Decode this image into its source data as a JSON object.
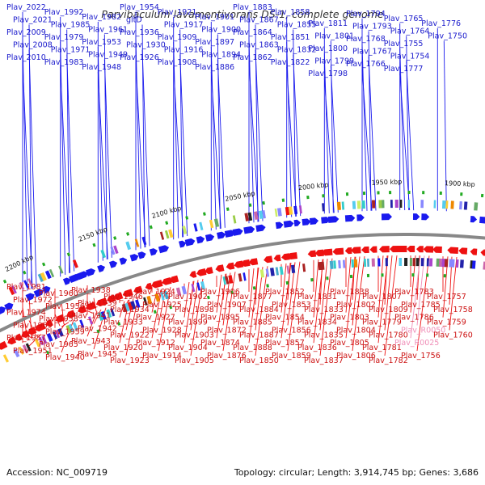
{
  "title": "Parvibaculum lavamentivorans DS-1, complete genome",
  "footer": {
    "accession": "Accession: NC_009719",
    "summary": "Topology: circular; Length: 3,914,745 bp; Genes: 3,686"
  },
  "colors": {
    "forward": "#1a1aee",
    "reverse": "#ee1111",
    "rna": "#f08fb8",
    "backbone": "#888888",
    "marker": "#22aa22"
  },
  "scale_ticks": [
    {
      "label": "2200 kbp"
    },
    {
      "label": "2150 kbp"
    },
    {
      "label": "2100 kbp"
    },
    {
      "label": "2050 kbp"
    },
    {
      "label": "2000 kbp"
    },
    {
      "label": "1950 kbp"
    },
    {
      "label": "1900 kbp"
    }
  ],
  "top_labels": [
    {
      "text": "Plav_2022"
    },
    {
      "text": "Plav_2021"
    },
    {
      "text": "Plav_2009"
    },
    {
      "text": "Plav_2008"
    },
    {
      "text": "Plav_2010"
    },
    {
      "text": "Plav_1992"
    },
    {
      "text": "Plav_1985"
    },
    {
      "text": "Plav_1979"
    },
    {
      "text": "Plav_1971"
    },
    {
      "text": "Plav_1983"
    },
    {
      "text": "Plav_1982"
    },
    {
      "text": "Plav_1961"
    },
    {
      "text": "Plav_1953"
    },
    {
      "text": "Plav_1949"
    },
    {
      "text": "Plav_1948"
    },
    {
      "text": "Plav_1954"
    },
    {
      "text": "gltD"
    },
    {
      "text": "Plav_1936"
    },
    {
      "text": "Plav_1930"
    },
    {
      "text": "Plav_1926"
    },
    {
      "text": "Plav_1921"
    },
    {
      "text": "Plav_1917"
    },
    {
      "text": "Plav_1909"
    },
    {
      "text": "Plav_1916"
    },
    {
      "text": "Plav_1908"
    },
    {
      "text": "Plav_1901"
    },
    {
      "text": "Plav_1900"
    },
    {
      "text": "Plav_1897"
    },
    {
      "text": "Plav_1894"
    },
    {
      "text": "Plav_1886"
    },
    {
      "text": "Plav_1883"
    },
    {
      "text": "Plav_1867"
    },
    {
      "text": "Plav_1864"
    },
    {
      "text": "Plav_1863"
    },
    {
      "text": "Plav_1862"
    },
    {
      "text": "Plav_1858"
    },
    {
      "text": "Plav_1855"
    },
    {
      "text": "Plav_1851"
    },
    {
      "text": "Plav_1832"
    },
    {
      "text": "Plav_1822"
    },
    {
      "text": "Plav_1811"
    },
    {
      "text": "Plav_1801"
    },
    {
      "text": "Plav_1800"
    },
    {
      "text": "Plav_1799"
    },
    {
      "text": "Plav_1798"
    },
    {
      "text": "Plav_1794"
    },
    {
      "text": "Plav_1793"
    },
    {
      "text": "Plav_1768"
    },
    {
      "text": "Plav_1767"
    },
    {
      "text": "Plav_1766"
    },
    {
      "text": "Plav_1765"
    },
    {
      "text": "Plav_1764"
    },
    {
      "text": "Plav_1755"
    },
    {
      "text": "Plav_1754"
    },
    {
      "text": "Plav_1777"
    },
    {
      "text": "Plav_1776"
    },
    {
      "text": "Plav_1750"
    }
  ],
  "bottom_labels": [
    {
      "text": "Plav_1981"
    },
    {
      "text": "Plav_1972"
    },
    {
      "text": "Plav_1974"
    },
    {
      "text": "Plav_1969"
    },
    {
      "text": "Plav_1957"
    },
    {
      "text": "Plav_1951"
    },
    {
      "text": "Plav_1960"
    },
    {
      "text": "Plav_1956"
    },
    {
      "text": "Plav_1958"
    },
    {
      "text": "Plav_1959"
    },
    {
      "text": "Plav_1965"
    },
    {
      "text": "Plav_1940"
    },
    {
      "text": "Plav_1938"
    },
    {
      "text": "Plav_1939"
    },
    {
      "text": "Plav_1941"
    },
    {
      "text": "Plav_1942"
    },
    {
      "text": "Plav_1943"
    },
    {
      "text": "Plav_1945"
    },
    {
      "text": "Plav_1946"
    },
    {
      "text": "Plav_1934"
    },
    {
      "text": "Plav_1933"
    },
    {
      "text": "Plav_1922"
    },
    {
      "text": "Plav_1920"
    },
    {
      "text": "Plav_1923"
    },
    {
      "text": "Plav_1924"
    },
    {
      "text": "Plav_1925"
    },
    {
      "text": "Plav_1927"
    },
    {
      "text": "Plav_1928"
    },
    {
      "text": "Plav_1912"
    },
    {
      "text": "Plav_1914"
    },
    {
      "text": "Plav_1902"
    },
    {
      "text": "Plav_1898"
    },
    {
      "text": "Plav_1899"
    },
    {
      "text": "Plav_1903"
    },
    {
      "text": "Plav_1904"
    },
    {
      "text": "Plav_1905"
    },
    {
      "text": "Plav_1906"
    },
    {
      "text": "Plav_1907"
    },
    {
      "text": "Plav_1895"
    },
    {
      "text": "Plav_1872"
    },
    {
      "text": "Plav_1874"
    },
    {
      "text": "Plav_1876"
    },
    {
      "text": "Plav_1877"
    },
    {
      "text": "Plav_1884"
    },
    {
      "text": "Plav_1885"
    },
    {
      "text": "Plav_1887"
    },
    {
      "text": "Plav_1888"
    },
    {
      "text": "Plav_1850"
    },
    {
      "text": "Plav_1852"
    },
    {
      "text": "Plav_1853"
    },
    {
      "text": "Plav_1854"
    },
    {
      "text": "Plav_1856"
    },
    {
      "text": "Plav_1857"
    },
    {
      "text": "Plav_1859"
    },
    {
      "text": "Plav_1831"
    },
    {
      "text": "Plav_1833"
    },
    {
      "text": "Plav_1834"
    },
    {
      "text": "Plav_1835"
    },
    {
      "text": "Plav_1836"
    },
    {
      "text": "Plav_1837"
    },
    {
      "text": "Plav_1838"
    },
    {
      "text": "Plav_1802"
    },
    {
      "text": "Plav_1803"
    },
    {
      "text": "Plav_1804"
    },
    {
      "text": "Plav_1805"
    },
    {
      "text": "Plav_1806"
    },
    {
      "text": "Plav_1807"
    },
    {
      "text": "Plav_1809"
    },
    {
      "text": "Plav_1779"
    },
    {
      "text": "Plav_1780"
    },
    {
      "text": "Plav_1781"
    },
    {
      "text": "Plav_1782"
    },
    {
      "text": "Plav_1783"
    },
    {
      "text": "Plav_1785"
    },
    {
      "text": "Plav_1786"
    },
    {
      "text": "Plav_R0050",
      "rna": true
    },
    {
      "text": "Plav_R0025",
      "rna": true
    },
    {
      "text": "Plav_1756"
    },
    {
      "text": "Plav_1757"
    },
    {
      "text": "Plav_1758"
    },
    {
      "text": "Plav_1759"
    },
    {
      "text": "Plav_1760"
    }
  ]
}
